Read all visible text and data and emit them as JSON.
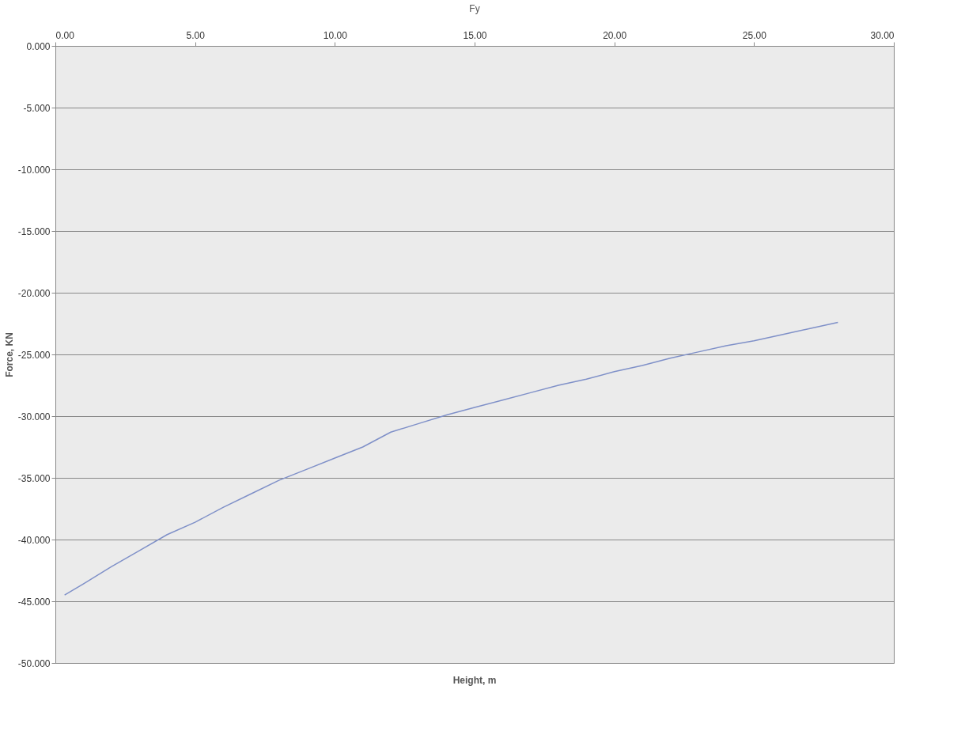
{
  "chart_data": {
    "type": "line",
    "title": "Fy",
    "xlabel": "Height, m",
    "ylabel": "Force, KN",
    "x": [
      0.33,
      1,
      2,
      3,
      4,
      5,
      6,
      7,
      8,
      9,
      10,
      11,
      12,
      13,
      14,
      15,
      16,
      17,
      18,
      19,
      20,
      21,
      22,
      23,
      24,
      25,
      26,
      27,
      28
    ],
    "series": [
      {
        "color": "#7f90c8",
        "values": [
          -44.5,
          -43.6,
          -42.2,
          -40.9,
          -39.6,
          -38.6,
          -37.4,
          -36.3,
          -35.2,
          -34.3,
          -33.4,
          -32.5,
          -31.3,
          -30.6,
          -29.9,
          -29.3,
          -28.7,
          -28.1,
          -27.5,
          -27.0,
          -26.4,
          -25.9,
          -25.3,
          -24.8,
          -24.3,
          -23.9,
          -23.4,
          -22.9,
          -22.4
        ]
      }
    ],
    "xlim": [
      0,
      30
    ],
    "ylim": [
      -50,
      0
    ],
    "xticks": [
      {
        "value": 0,
        "label": "0.00"
      },
      {
        "value": 5,
        "label": "5.00"
      },
      {
        "value": 10,
        "label": "10.00"
      },
      {
        "value": 15,
        "label": "15.00"
      },
      {
        "value": 20,
        "label": "20.00"
      },
      {
        "value": 25,
        "label": "25.00"
      },
      {
        "value": 30,
        "label": "30.00"
      }
    ],
    "yticks": [
      {
        "value": 0,
        "label": "0.000"
      },
      {
        "value": -5,
        "label": "-5.000"
      },
      {
        "value": -10,
        "label": "-10.000"
      },
      {
        "value": -15,
        "label": "-15.000"
      },
      {
        "value": -20,
        "label": "-20.000"
      },
      {
        "value": -25,
        "label": "-25.000"
      },
      {
        "value": -30,
        "label": "-30.000"
      },
      {
        "value": -35,
        "label": "-35.000"
      },
      {
        "value": -40,
        "label": "-40.000"
      },
      {
        "value": -45,
        "label": "-45.000"
      },
      {
        "value": -50,
        "label": "-50.000"
      }
    ],
    "grid": "y",
    "marker": "none",
    "line_style": "solid"
  }
}
